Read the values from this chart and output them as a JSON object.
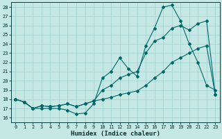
{
  "xlabel": "Humidex (Indice chaleur)",
  "bg_color": "#c5e8e5",
  "grid_color": "#9ecece",
  "line_color": "#006868",
  "xlim": [
    -0.5,
    23.5
  ],
  "ylim": [
    15.5,
    28.5
  ],
  "yticks": [
    16,
    17,
    18,
    19,
    20,
    21,
    22,
    23,
    24,
    25,
    26,
    27,
    28
  ],
  "xticks": [
    0,
    1,
    2,
    3,
    4,
    5,
    6,
    7,
    8,
    9,
    10,
    11,
    12,
    13,
    14,
    15,
    16,
    17,
    18,
    19,
    20,
    21,
    22,
    23
  ],
  "line1_x": [
    0,
    1,
    2,
    3,
    4,
    5,
    6,
    7,
    8,
    9,
    10,
    11,
    12,
    13,
    14,
    15,
    16,
    17,
    18,
    19,
    20,
    21,
    22,
    23
  ],
  "line1_y": [
    18.0,
    17.7,
    17.0,
    17.0,
    17.0,
    17.0,
    16.8,
    16.4,
    16.5,
    17.5,
    20.3,
    21.0,
    22.5,
    21.3,
    20.5,
    23.8,
    25.7,
    28.0,
    28.2,
    26.5,
    24.0,
    22.0,
    19.5,
    19.0
  ],
  "line2_x": [
    0,
    1,
    2,
    3,
    4,
    5,
    6,
    7,
    8,
    9,
    10,
    11,
    12,
    13,
    14,
    15,
    16,
    17,
    18,
    19,
    20,
    21,
    22,
    23
  ],
  "line2_y": [
    18.0,
    17.7,
    17.0,
    17.3,
    17.2,
    17.3,
    17.5,
    17.2,
    17.5,
    17.8,
    19.0,
    19.5,
    20.3,
    20.7,
    21.0,
    23.0,
    24.3,
    24.7,
    25.7,
    26.0,
    25.5,
    26.2,
    26.5,
    18.5
  ],
  "line3_x": [
    0,
    1,
    2,
    3,
    4,
    5,
    6,
    7,
    8,
    9,
    10,
    11,
    12,
    13,
    14,
    15,
    16,
    17,
    18,
    19,
    20,
    21,
    22,
    23
  ],
  "line3_y": [
    18.0,
    17.7,
    17.0,
    17.3,
    17.2,
    17.3,
    17.5,
    17.2,
    17.5,
    17.8,
    18.0,
    18.2,
    18.5,
    18.7,
    18.9,
    19.5,
    20.3,
    21.0,
    22.0,
    22.5,
    23.0,
    23.5,
    23.8,
    18.5
  ],
  "xlabel_fontsize": 6.5,
  "tick_fontsize": 5.0
}
